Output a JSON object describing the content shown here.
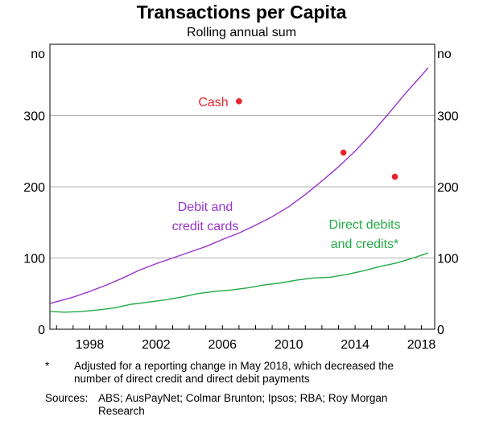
{
  "chart_data": {
    "type": "line",
    "title": "Transactions per Capita",
    "subtitle": "Rolling annual sum",
    "ylabel_left": "no",
    "ylabel_right": "no",
    "xlim": [
      1995.6,
      2018.8
    ],
    "ylim": [
      0,
      400
    ],
    "yticks": [
      0,
      100,
      200,
      300
    ],
    "xticks": [
      1998,
      2002,
      2006,
      2010,
      2014,
      2018
    ],
    "grid": true,
    "series": [
      {
        "name": "Debit and credit cards",
        "label_lines": [
          "Debit and",
          "credit cards"
        ],
        "color": "#9933CC",
        "type": "line",
        "x": [
          1995.6,
          1997,
          1998,
          1999,
          2000,
          2001,
          2002,
          2003,
          2004,
          2005,
          2006,
          2007,
          2008,
          2009,
          2010,
          2011,
          2012,
          2013,
          2014,
          2015,
          2016,
          2017,
          2018,
          2018.4
        ],
        "y": [
          36,
          45,
          53,
          62,
          72,
          83,
          92,
          100,
          108,
          116,
          126,
          135,
          146,
          158,
          172,
          189,
          208,
          228,
          250,
          275,
          302,
          330,
          356,
          367
        ]
      },
      {
        "name": "Direct debits and credits*",
        "label_lines": [
          "Direct debits",
          "and credits*"
        ],
        "color": "#22AA44",
        "type": "line",
        "x": [
          1995.6,
          1996.5,
          1997.5,
          1998.5,
          1999.5,
          2000.5,
          2001.5,
          2002.5,
          2003.5,
          2004.5,
          2005.5,
          2006.5,
          2007.5,
          2008.5,
          2009.5,
          2010.5,
          2011.5,
          2012.5,
          2013.5,
          2014.5,
          2015.5,
          2016.5,
          2017.5,
          2018.4
        ],
        "y": [
          25,
          24,
          25,
          27,
          30,
          35,
          38,
          41,
          45,
          50,
          53,
          55,
          58,
          62,
          65,
          69,
          72,
          73,
          77,
          82,
          88,
          93,
          100,
          107
        ]
      },
      {
        "name": "Cash",
        "label_lines": [
          "Cash"
        ],
        "color": "#E8232D",
        "type": "scatter",
        "x": [
          2007,
          2013.3,
          2016.4
        ],
        "y": [
          320,
          248,
          214
        ]
      }
    ]
  },
  "footnote": {
    "marker": "*",
    "text": "Adjusted for a reporting change in May 2018, which decreased the number of direct credit and direct debit payments"
  },
  "sources": {
    "label": "Sources:",
    "text": "ABS; AusPayNet; Colmar Brunton; Ipsos; RBA; Roy Morgan Research"
  }
}
